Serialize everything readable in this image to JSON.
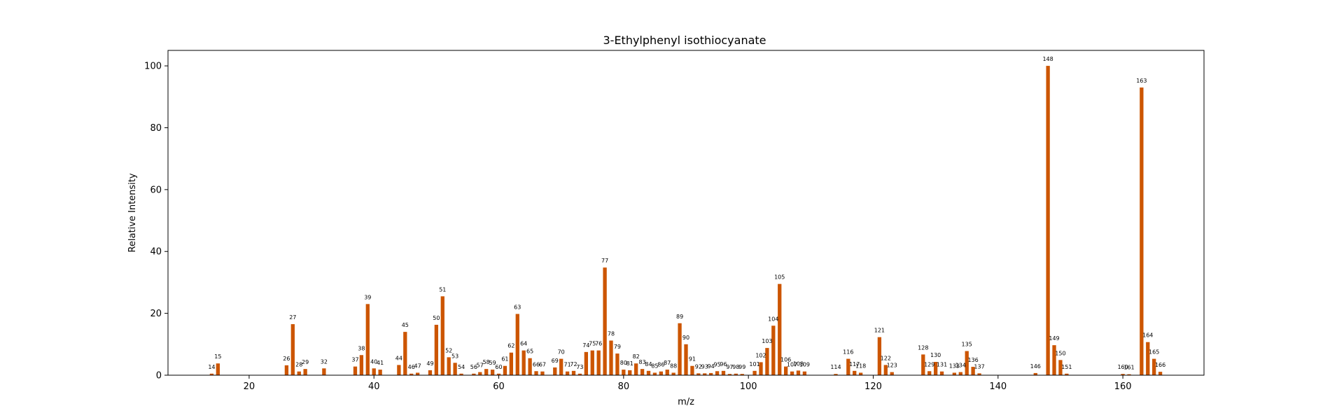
{
  "chart_data": {
    "type": "bar",
    "title": "3-Ethylphenyl isothiocyanate",
    "xlabel": "m/z",
    "ylabel": "Relative Intensity",
    "xlim": [
      7,
      173
    ],
    "ylim": [
      0,
      105
    ],
    "xticks": [
      20,
      40,
      60,
      80,
      100,
      120,
      140,
      160
    ],
    "yticks": [
      0,
      20,
      40,
      60,
      80,
      100
    ],
    "bar_color": "#cc5500",
    "grid": false,
    "x": [
      14,
      15,
      26,
      27,
      28,
      29,
      32,
      37,
      38,
      39,
      40,
      41,
      44,
      45,
      46,
      47,
      49,
      50,
      51,
      52,
      53,
      54,
      56,
      57,
      58,
      59,
      60,
      61,
      62,
      63,
      64,
      65,
      66,
      67,
      69,
      70,
      71,
      72,
      73,
      74,
      75,
      76,
      77,
      78,
      79,
      80,
      81,
      82,
      83,
      84,
      85,
      86,
      87,
      88,
      89,
      90,
      91,
      92,
      93,
      94,
      95,
      96,
      97,
      98,
      99,
      101,
      102,
      103,
      104,
      105,
      106,
      107,
      108,
      109,
      114,
      116,
      117,
      118,
      121,
      122,
      123,
      128,
      129,
      130,
      131,
      133,
      134,
      135,
      136,
      137,
      146,
      148,
      149,
      150,
      151,
      160,
      161,
      163,
      164,
      165,
      166
    ],
    "values": [
      0.5,
      3.8,
      3.2,
      16.5,
      1.2,
      2.0,
      2.2,
      2.8,
      6.5,
      23.0,
      2.2,
      1.8,
      3.3,
      14.0,
      0.5,
      0.8,
      1.6,
      16.3,
      25.5,
      5.8,
      4.0,
      0.5,
      0.5,
      1.0,
      2.0,
      1.8,
      0.5,
      3.0,
      7.3,
      19.8,
      8.0,
      5.5,
      1.3,
      1.2,
      2.5,
      5.3,
      1.2,
      1.4,
      0.5,
      7.5,
      8.0,
      8.0,
      34.8,
      11.2,
      7.0,
      1.8,
      1.6,
      3.8,
      2.0,
      1.4,
      0.8,
      1.2,
      1.8,
      0.8,
      16.8,
      10.0,
      3.0,
      0.6,
      0.6,
      0.7,
      1.3,
      1.4,
      0.4,
      0.5,
      0.4,
      1.4,
      4.2,
      8.8,
      16.0,
      29.5,
      2.8,
      1.2,
      1.5,
      1.2,
      0.4,
      5.3,
      1.4,
      0.8,
      12.3,
      3.3,
      1.0,
      6.7,
      1.3,
      4.3,
      1.2,
      0.8,
      1.0,
      7.8,
      2.7,
      0.6,
      0.7,
      100.0,
      9.7,
      4.9,
      0.5,
      0.4,
      0.3,
      93.0,
      10.7,
      5.3,
      1.1
    ]
  }
}
